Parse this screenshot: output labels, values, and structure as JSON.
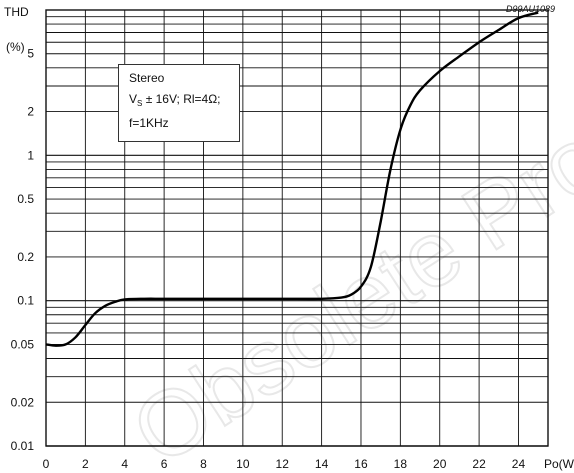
{
  "doc_code": "D99AU1089",
  "watermark": "Obsolete Product(s) - Obsolete Product(s)",
  "legend": {
    "line1": "Stereo",
    "line2_main": "V",
    "line2_sub": "S",
    "line2_rest": " ± 16V; Rl=4Ω;",
    "line3": "f=1KHz"
  },
  "chart_data": {
    "type": "line",
    "title": "",
    "ylabel_line1": "THD",
    "ylabel_line2": "(%)",
    "xlabel": "Po(W)",
    "xlim": [
      0,
      25.5
    ],
    "ylim": [
      0.01,
      10
    ],
    "yscale": "log",
    "grid": true,
    "x_ticks": [
      0,
      2,
      4,
      6,
      8,
      10,
      12,
      14,
      16,
      18,
      20,
      22,
      24
    ],
    "y_tick_values": [
      0.01,
      0.02,
      0.05,
      0.1,
      0.2,
      0.5,
      1,
      2,
      5
    ],
    "y_tick_labels": [
      "0.01",
      "0.02",
      "0.05",
      "0.1",
      "0.2",
      "0.5",
      "1",
      "2",
      "5"
    ],
    "series": [
      {
        "x": [
          0,
          0.5,
          1.0,
          1.5,
          2.0,
          2.5,
          3.0,
          3.5,
          4.0,
          5.0,
          6.0,
          8.0,
          10.0,
          12.0,
          14.0,
          15.0,
          15.5,
          16.0,
          16.5,
          17.0,
          17.5,
          18.0,
          18.5,
          19.0,
          20.0,
          21.0,
          22.0,
          23.0,
          24.0,
          25.0
        ],
        "y": [
          0.05,
          0.049,
          0.05,
          0.056,
          0.068,
          0.082,
          0.092,
          0.098,
          0.102,
          0.103,
          0.103,
          0.103,
          0.103,
          0.103,
          0.103,
          0.105,
          0.11,
          0.125,
          0.17,
          0.35,
          0.8,
          1.5,
          2.2,
          2.8,
          3.8,
          4.8,
          6.0,
          7.3,
          8.8,
          9.6
        ]
      }
    ]
  }
}
